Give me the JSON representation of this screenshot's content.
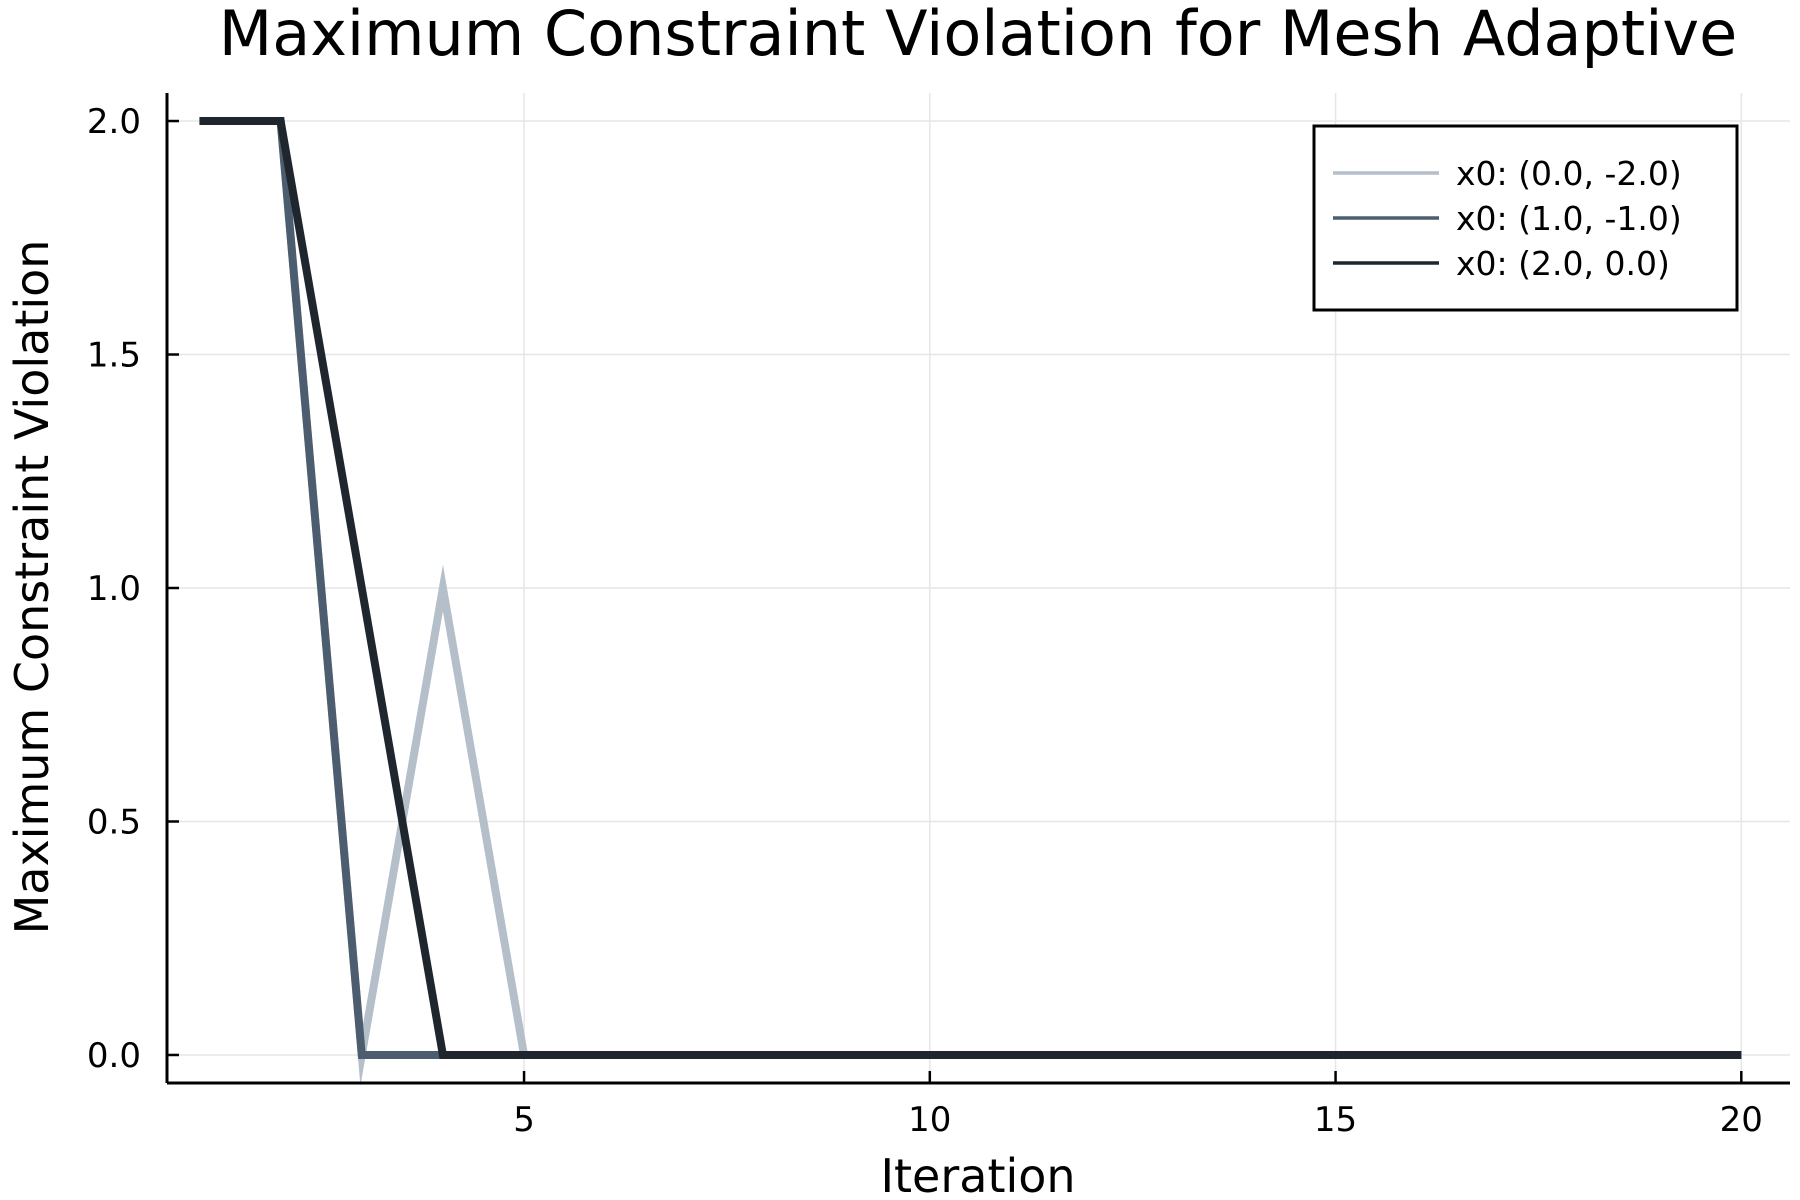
{
  "chart_data": {
    "type": "line",
    "title": "Maximum Constraint Violation for Mesh Adaptive",
    "xlabel": "Iteration",
    "ylabel": "Maximum Constraint Violation",
    "xlim": [
      0.6,
      20.6
    ],
    "ylim": [
      -0.06,
      2.06
    ],
    "xticks": [
      5,
      10,
      15,
      20
    ],
    "xtick_labels": [
      "5",
      "10",
      "15",
      "20"
    ],
    "yticks": [
      0.0,
      0.5,
      1.0,
      1.5,
      2.0
    ],
    "ytick_labels": [
      "0.0",
      "0.5",
      "1.0",
      "1.5",
      "2.0"
    ],
    "grid": true,
    "legend_position": "top-right",
    "x": [
      1,
      2,
      3,
      4,
      5,
      6,
      7,
      8,
      9,
      10,
      11,
      12,
      13,
      14,
      15,
      16,
      17,
      18,
      19,
      20
    ],
    "series": [
      {
        "name": "x0: (0.0, -2.0)",
        "color": "#b4bfc9",
        "values": [
          2.0,
          2.0,
          0.0,
          1.0,
          0.0,
          0.0,
          0.0,
          0.0,
          0.0,
          0.0,
          0.0,
          0.0,
          0.0,
          0.0,
          0.0,
          0.0,
          0.0,
          0.0,
          0.0,
          0.0
        ]
      },
      {
        "name": "x0: (1.0, -1.0)",
        "color": "#4b5d6f",
        "values": [
          2.0,
          2.0,
          0.0,
          0.0,
          0.0,
          0.0,
          0.0,
          0.0,
          0.0,
          0.0,
          0.0,
          0.0,
          0.0,
          0.0,
          0.0,
          0.0,
          0.0,
          0.0,
          0.0,
          0.0
        ]
      },
      {
        "name": "x0: (2.0, 0.0)",
        "color": "#1f262d",
        "values": [
          2.0,
          2.0,
          1.0,
          0.0,
          0.0,
          0.0,
          0.0,
          0.0,
          0.0,
          0.0,
          0.0,
          0.0,
          0.0,
          0.0,
          0.0,
          0.0,
          0.0,
          0.0,
          0.0,
          0.0
        ]
      }
    ]
  }
}
